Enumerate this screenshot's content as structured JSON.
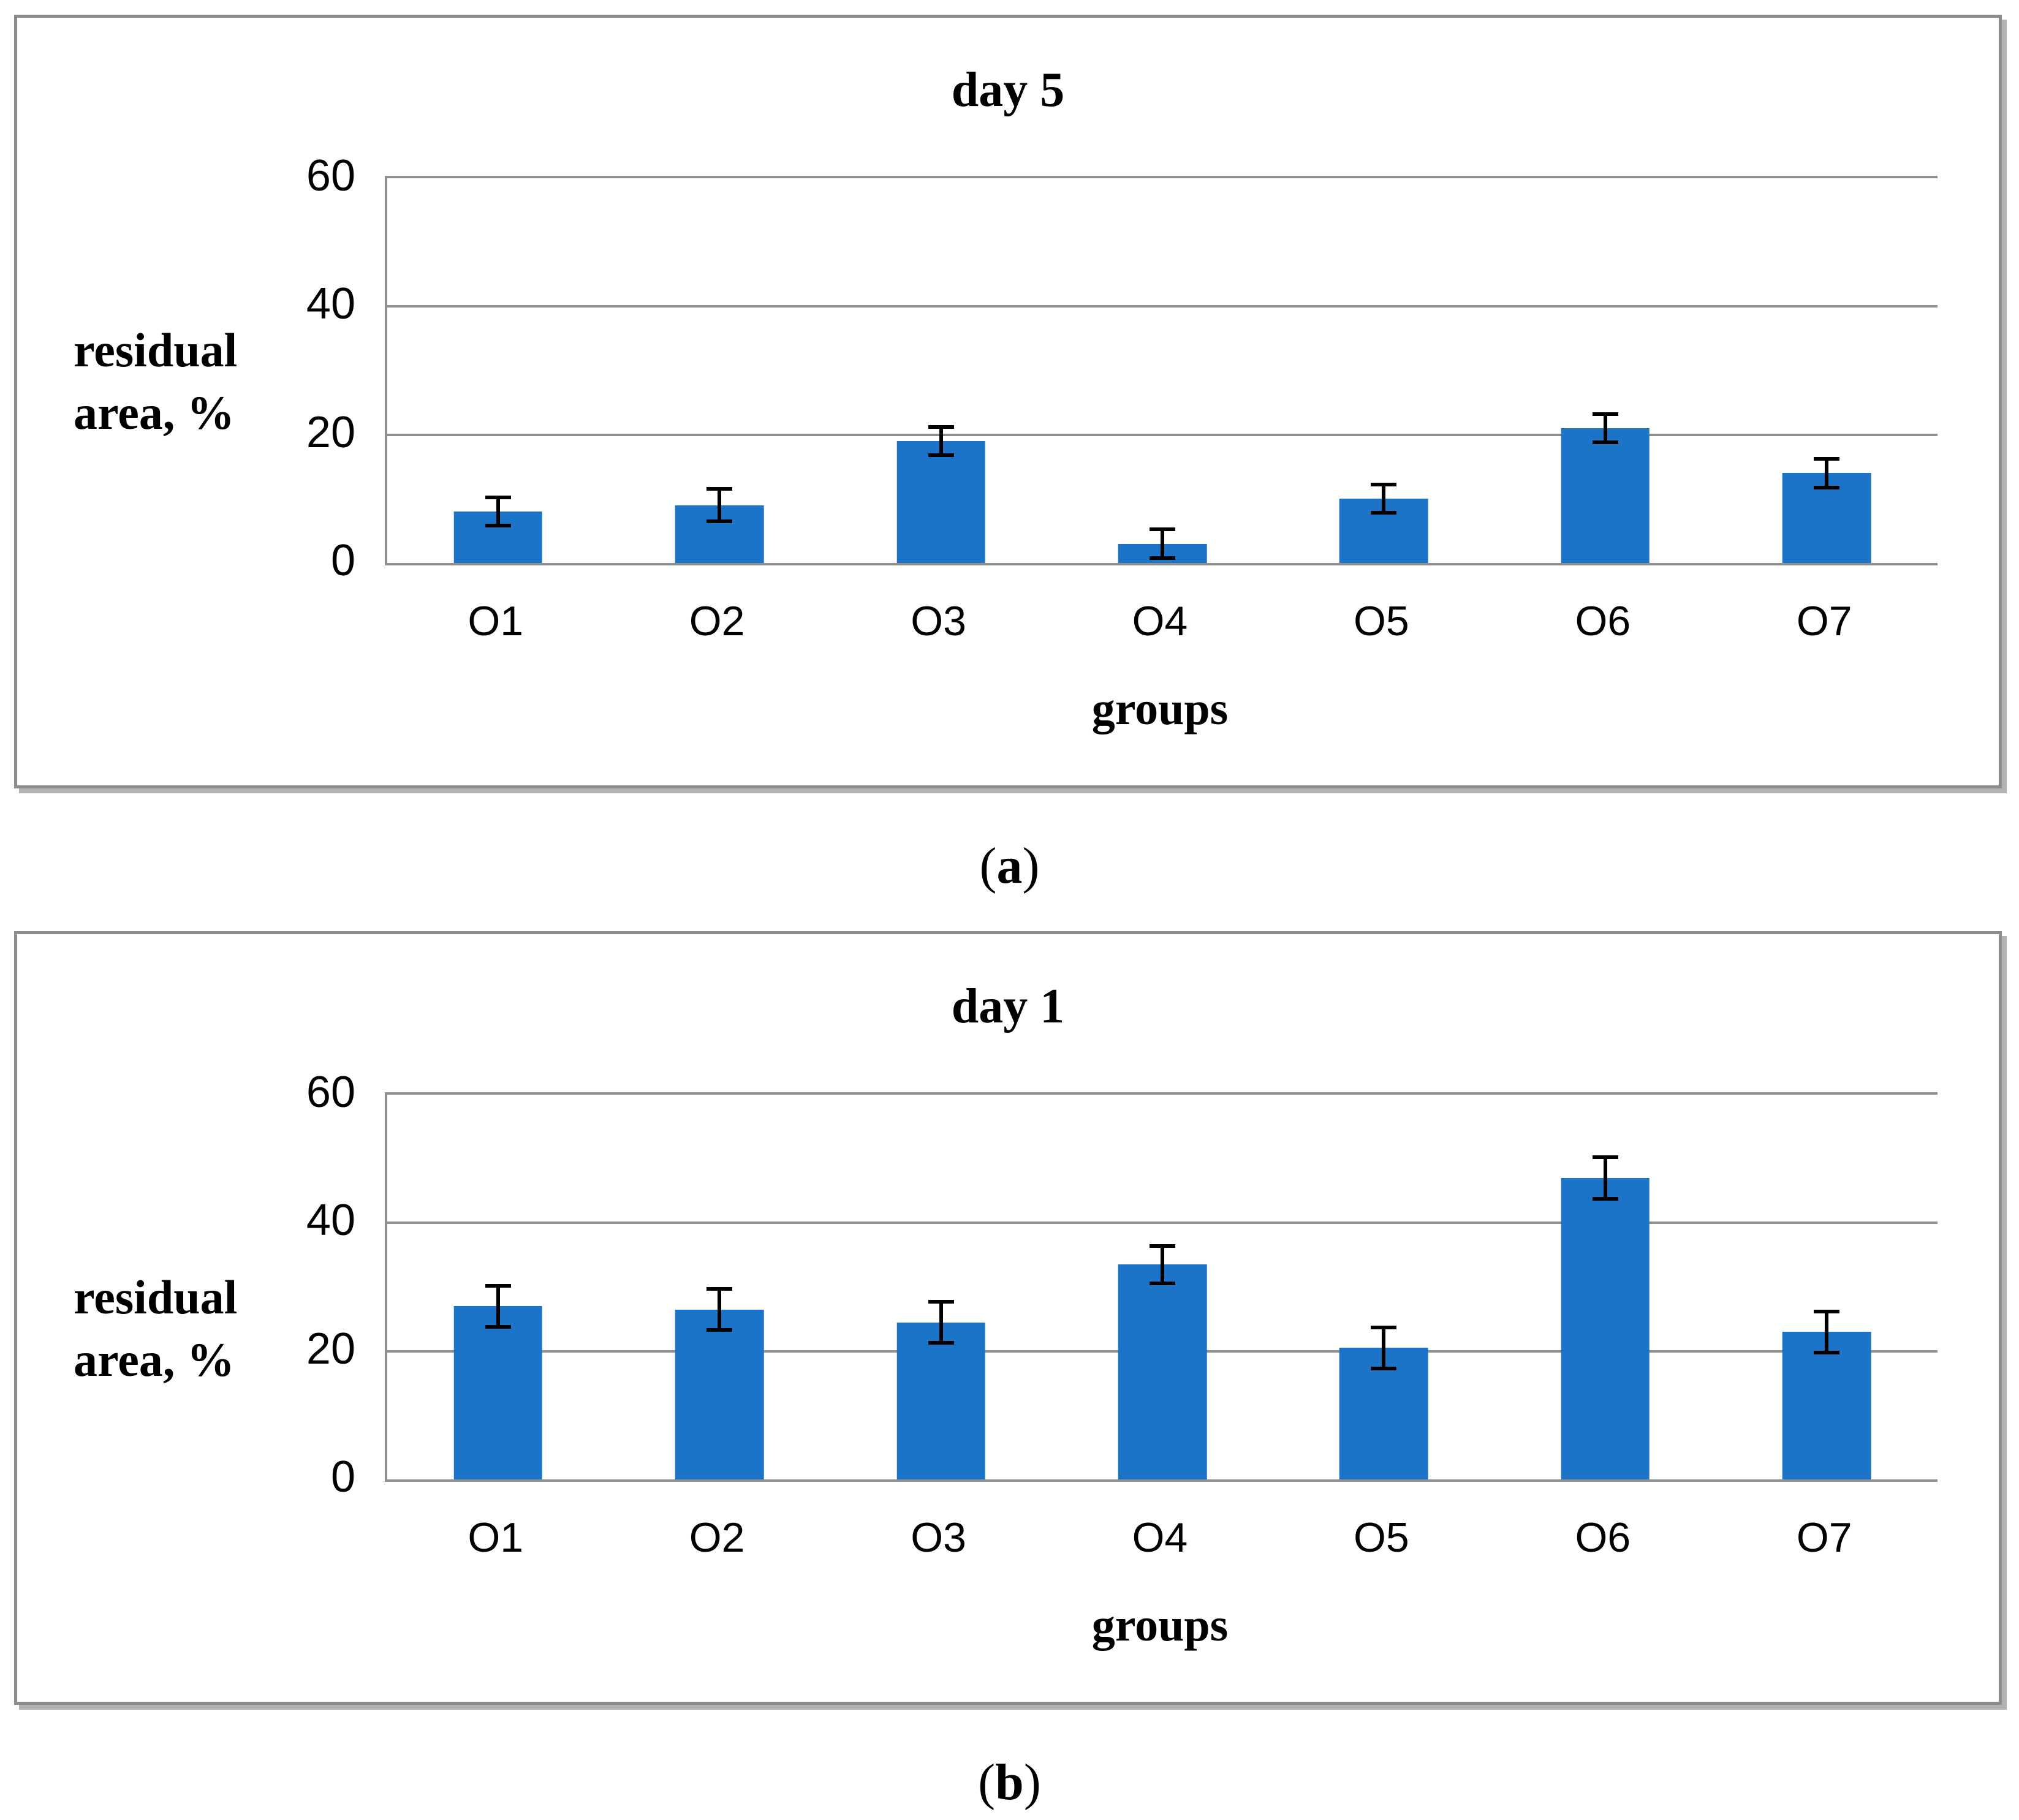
{
  "page": {
    "background": "#ffffff"
  },
  "colors": {
    "bar": "#1b74c8",
    "gridline": "#909090",
    "panel_border": "#8c8c8c",
    "error_bar": "#000000"
  },
  "captions": [
    {
      "open": "(",
      "letter": "a",
      "close": ")"
    },
    {
      "open": "(",
      "letter": "b",
      "close": ")"
    }
  ],
  "chart_data": [
    {
      "type": "bar",
      "title": "day 5",
      "categories": [
        "O1",
        "O2",
        "O3",
        "O4",
        "O5",
        "O6",
        "O7"
      ],
      "values": [
        8,
        9,
        19,
        3,
        10,
        21,
        14
      ],
      "error_bars": [
        2.5,
        2.8,
        2.5,
        2.5,
        2.5,
        2.5,
        2.5
      ],
      "xlabel": "groups",
      "ylabel": "residual area, %",
      "ylabel_lines": [
        "residual",
        "area, %"
      ],
      "ylim": [
        0,
        60
      ],
      "yticks": [
        0,
        20,
        40,
        60
      ],
      "bar_color": "#1b74c8",
      "grid": true,
      "legend": false
    },
    {
      "type": "bar",
      "title": "day 1",
      "categories": [
        "O1",
        "O2",
        "O3",
        "O4",
        "O5",
        "O6",
        "O7"
      ],
      "values": [
        27,
        26.5,
        24.5,
        33.5,
        20.5,
        47,
        23
      ],
      "error_bars": [
        3.5,
        3.5,
        3.5,
        3.2,
        3.5,
        3.5,
        3.5
      ],
      "xlabel": "groups",
      "ylabel": "residual area, %",
      "ylabel_lines": [
        "residual",
        "area, %"
      ],
      "ylim": [
        0,
        60
      ],
      "yticks": [
        0,
        20,
        40,
        60
      ],
      "bar_color": "#1b74c8",
      "grid": true,
      "legend": false
    }
  ]
}
